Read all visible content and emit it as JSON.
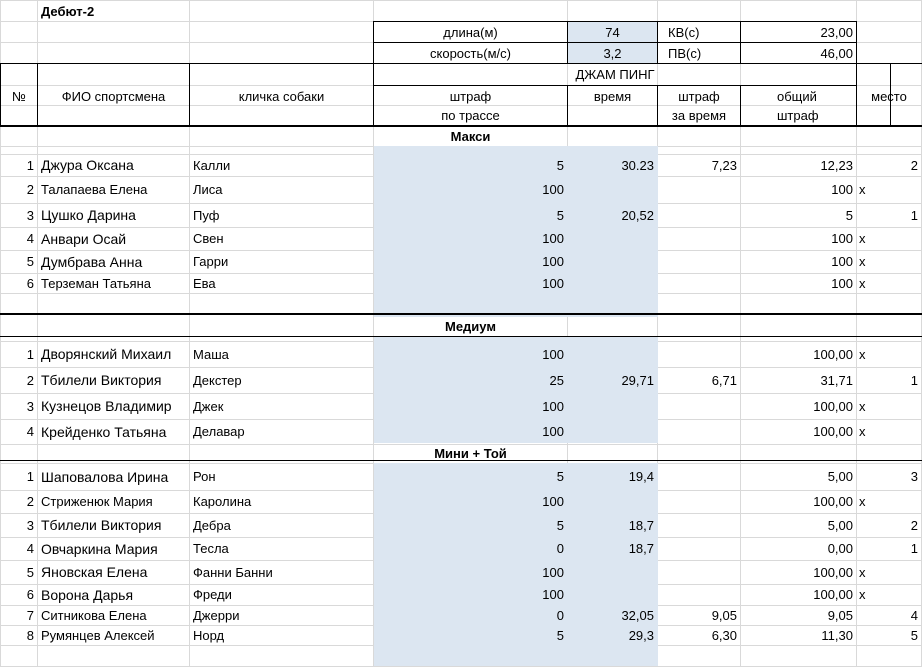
{
  "title": "Дебют-2",
  "params": {
    "length_label": "длина(м)",
    "length_value": "74",
    "kv_label": "КВ(с)",
    "kv_value": "23,00",
    "speed_label": "скорость(м/с)",
    "speed_value": "3,2",
    "pv_label": "ПВ(с)",
    "pv_value": "46,00"
  },
  "headers": {
    "num": "№",
    "name": "ФИО спортсмена",
    "dog": "кличка собаки",
    "group": "ДЖАМ ПИНГ",
    "penalty_1": "штраф",
    "penalty_2": "по трассе",
    "time": "время",
    "time_penalty_1": "штраф",
    "time_penalty_2": "за время",
    "total_1": "общий",
    "total_2": "штраф",
    "place": "место"
  },
  "sections": [
    {
      "title": "Макси",
      "rows": [
        {
          "num": "1",
          "name": "Джура Оксана",
          "dog": "Калли",
          "penalty": "5",
          "time": "30.23",
          "time_penalty": "7,23",
          "total": "12,23",
          "mark": "",
          "place": "2"
        },
        {
          "num": "2",
          "name": "Талапаева Елена",
          "dog": "Лиса",
          "penalty": "100",
          "time": "",
          "time_penalty": "",
          "total": "100",
          "mark": "х",
          "place": ""
        },
        {
          "num": "3",
          "name": "Цушко Дарина",
          "dog": "Пуф",
          "penalty": "5",
          "time": "20,52",
          "time_penalty": "",
          "total": "5",
          "mark": "",
          "place": "1"
        },
        {
          "num": "4",
          "name": "Анвари Осай",
          "dog": "Свен",
          "penalty": "100",
          "time": "",
          "time_penalty": "",
          "total": "100",
          "mark": "х",
          "place": ""
        },
        {
          "num": "5",
          "name": "Думбрава Анна",
          "dog": "Гарри",
          "penalty": "100",
          "time": "",
          "time_penalty": "",
          "total": "100",
          "mark": "х",
          "place": ""
        },
        {
          "num": "6",
          "name": "Терземан Татьяна",
          "dog": "Ева",
          "penalty": "100",
          "time": "",
          "time_penalty": "",
          "total": "100",
          "mark": "х",
          "place": ""
        }
      ]
    },
    {
      "title": "Медиум",
      "rows": [
        {
          "num": "1",
          "name": "Дворянский Михаил",
          "dog": "Маша",
          "penalty": "100",
          "time": "",
          "time_penalty": "",
          "total": "100,00",
          "mark": "х",
          "place": ""
        },
        {
          "num": "2",
          "name": "Тбилели Виктория",
          "dog": "Декстер",
          "penalty": "25",
          "time": "29,71",
          "time_penalty": "6,71",
          "total": "31,71",
          "mark": "",
          "place": "1"
        },
        {
          "num": "3",
          "name": "Кузнецов Владимир",
          "dog": "Джек",
          "penalty": "100",
          "time": "",
          "time_penalty": "",
          "total": "100,00",
          "mark": "х",
          "place": ""
        },
        {
          "num": "4",
          "name": "Крейденко Татьяна",
          "dog": "Делавар",
          "penalty": "100",
          "time": "",
          "time_penalty": "",
          "total": "100,00",
          "mark": "х",
          "place": ""
        }
      ]
    },
    {
      "title": "Мини + Той",
      "rows": [
        {
          "num": "1",
          "name": "Шаповалова Ирина",
          "dog": "Рон",
          "penalty": "5",
          "time": "19,4",
          "time_penalty": "",
          "total": "5,00",
          "mark": "",
          "place": "3"
        },
        {
          "num": "2",
          "name": "Стриженюк Мария",
          "dog": "Каролина",
          "penalty": "100",
          "time": "",
          "time_penalty": "",
          "total": "100,00",
          "mark": "х",
          "place": ""
        },
        {
          "num": "3",
          "name": "Тбилели Виктория",
          "dog": "Дебра",
          "penalty": "5",
          "time": "18,7",
          "time_penalty": "",
          "total": "5,00",
          "mark": "",
          "place": "2"
        },
        {
          "num": "4",
          "name": "Овчаркина Мария",
          "dog": "Тесла",
          "penalty": "0",
          "time": "18,7",
          "time_penalty": "",
          "total": "0,00",
          "mark": "",
          "place": "1"
        },
        {
          "num": "5",
          "name": "Яновская Елена",
          "dog": "Фанни Банни",
          "penalty": "100",
          "time": "",
          "time_penalty": "",
          "total": "100,00",
          "mark": "х",
          "place": ""
        },
        {
          "num": "6",
          "name": "Ворона Дарья",
          "dog": "Фреди",
          "penalty": "100",
          "time": "",
          "time_penalty": "",
          "total": "100,00",
          "mark": "х",
          "place": ""
        },
        {
          "num": "7",
          "name": "Ситникова Елена",
          "dog": "Джерри",
          "penalty": "0",
          "time": "32,05",
          "time_penalty": "9,05",
          "total": "9,05",
          "mark": "",
          "place": "4"
        },
        {
          "num": "8",
          "name": "Румянцев Алексей",
          "dog": "Норд",
          "penalty": "5",
          "time": "29,3",
          "time_penalty": "6,30",
          "total": "11,30",
          "mark": "",
          "place": "5"
        }
      ]
    }
  ]
}
